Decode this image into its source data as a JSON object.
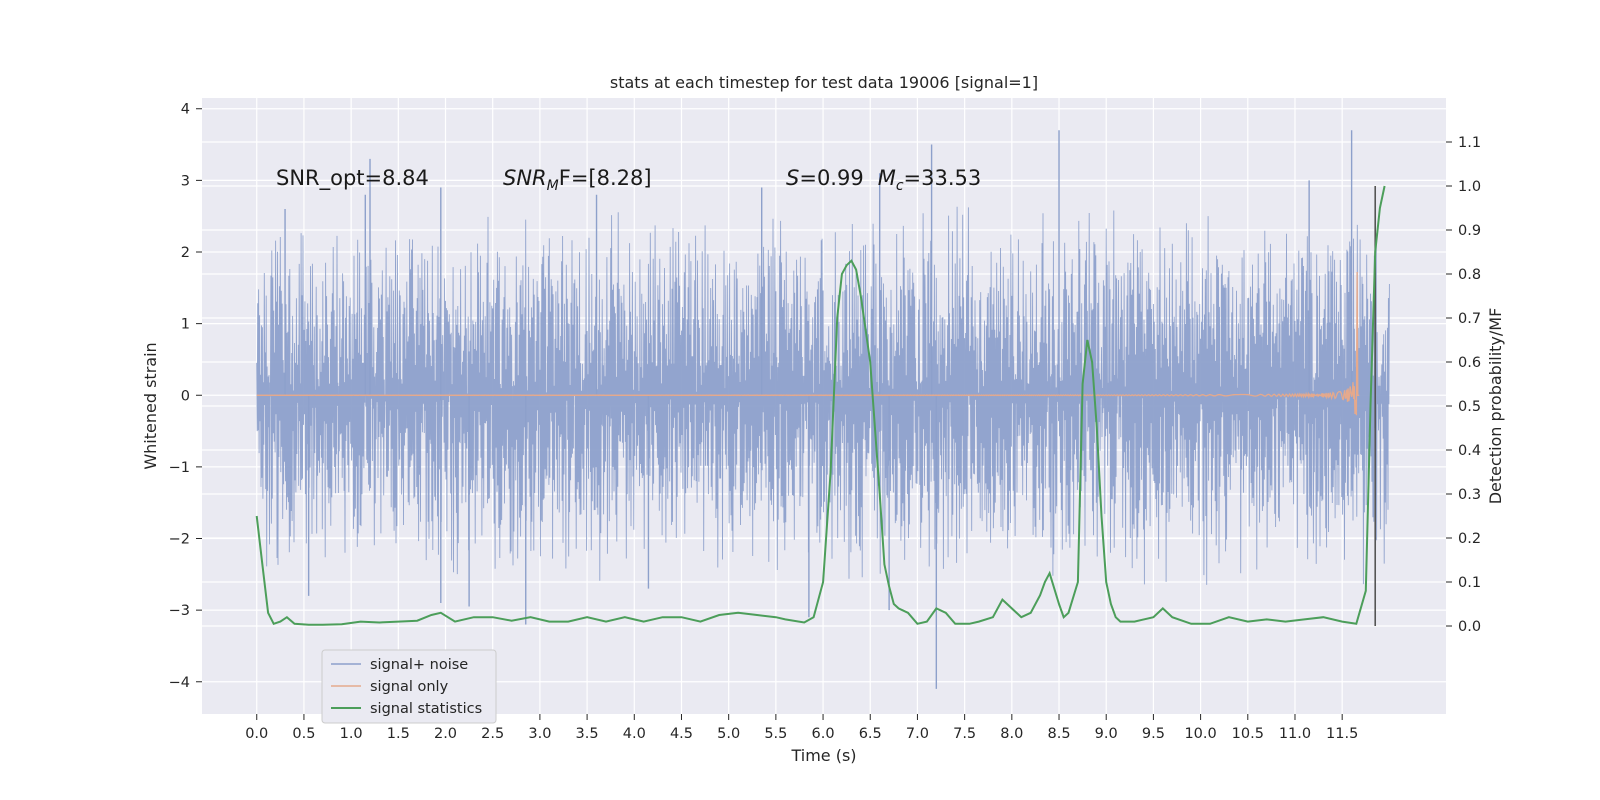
{
  "chart_data": {
    "type": "line",
    "title": "stats at each timestep for test data 19006 [signal=1]",
    "xlabel": "Time (s)",
    "ylabel_left": "Whitened strain",
    "ylabel_right": "Detection probability/MF",
    "xlim": [
      -0.58,
      12.6
    ],
    "ylim_left": [
      -4.45,
      4.15
    ],
    "ylim_right": [
      -0.2,
      1.2
    ],
    "x_ticks": [
      "0.0",
      "0.5",
      "1.0",
      "1.5",
      "2.0",
      "2.5",
      "3.0",
      "3.5",
      "4.0",
      "4.5",
      "5.0",
      "5.5",
      "6.0",
      "6.5",
      "7.0",
      "7.5",
      "8.0",
      "8.5",
      "9.0",
      "9.5",
      "10.0",
      "10.5",
      "11.0",
      "11.5"
    ],
    "y_ticks_left": [
      "−4",
      "−3",
      "−2",
      "−1",
      "0",
      "1",
      "2",
      "3",
      "4"
    ],
    "y_ticks_right": [
      "0.0",
      "0.1",
      "0.2",
      "0.3",
      "0.4",
      "0.5",
      "0.6",
      "0.7",
      "0.8",
      "0.9",
      "1.0",
      "1.1"
    ],
    "grid": true,
    "legend_position": "lower-left",
    "colors": {
      "noise": "#8da0cb",
      "signal": "#e5a98c",
      "stats": "#4c9e5a",
      "marker": "#555555",
      "background": "#eaeaf2",
      "grid": "#ffffff"
    },
    "annotations": {
      "snr_opt": "SNR_opt=8.84",
      "snr_mf_base": "SNR",
      "snr_mf_sub": "M",
      "snr_mf_rest": "F=[8.28]",
      "s_label": "S",
      "s_value": "=0.99",
      "mc_label": "M",
      "mc_sub": "c",
      "mc_value": "=33.53"
    },
    "series": [
      {
        "name": "signal+ noise",
        "axis": "left",
        "x_range": [
          0.0,
          12.0
        ],
        "envelope_typical": 1.5,
        "peaks": [
          {
            "x": 0.3,
            "y": 2.6
          },
          {
            "x": 0.55,
            "y": -2.8
          },
          {
            "x": 1.15,
            "y": 2.8
          },
          {
            "x": 1.2,
            "y": 3.3
          },
          {
            "x": 1.95,
            "y": 2.9
          },
          {
            "x": 1.95,
            "y": -2.9
          },
          {
            "x": 2.25,
            "y": -2.95
          },
          {
            "x": 2.85,
            "y": -3.2
          },
          {
            "x": 3.6,
            "y": 2.8
          },
          {
            "x": 4.15,
            "y": -2.7
          },
          {
            "x": 5.35,
            "y": 2.9
          },
          {
            "x": 5.85,
            "y": -3.1
          },
          {
            "x": 6.6,
            "y": 3.1
          },
          {
            "x": 6.7,
            "y": -3.0
          },
          {
            "x": 7.15,
            "y": 3.5
          },
          {
            "x": 7.2,
            "y": -4.1
          },
          {
            "x": 8.5,
            "y": 3.7
          },
          {
            "x": 11.15,
            "y": 3.0
          },
          {
            "x": 11.6,
            "y": 3.7
          }
        ]
      },
      {
        "name": "signal only",
        "axis": "left",
        "x_start": 0.0,
        "x_end": 11.68,
        "merger_time": 11.66,
        "peak_amplitude": 2.0
      },
      {
        "name": "signal statistics",
        "axis": "right",
        "x": [
          0.0,
          0.07,
          0.12,
          0.18,
          0.25,
          0.32,
          0.4,
          0.55,
          0.7,
          0.9,
          1.1,
          1.3,
          1.5,
          1.7,
          1.85,
          1.95,
          2.1,
          2.3,
          2.5,
          2.7,
          2.9,
          3.1,
          3.3,
          3.5,
          3.7,
          3.9,
          4.1,
          4.3,
          4.5,
          4.7,
          4.9,
          5.1,
          5.3,
          5.5,
          5.6,
          5.8,
          5.9,
          6.0,
          6.08,
          6.15,
          6.2,
          6.25,
          6.3,
          6.35,
          6.4,
          6.5,
          6.6,
          6.65,
          6.7,
          6.75,
          6.8,
          6.9,
          7.0,
          7.1,
          7.2,
          7.3,
          7.4,
          7.55,
          7.65,
          7.8,
          7.9,
          8.0,
          8.1,
          8.2,
          8.3,
          8.35,
          8.4,
          8.5,
          8.55,
          8.6,
          8.7,
          8.75,
          8.8,
          8.85,
          8.9,
          8.95,
          9.0,
          9.05,
          9.1,
          9.15,
          9.2,
          9.3,
          9.5,
          9.6,
          9.7,
          9.9,
          10.1,
          10.3,
          10.5,
          10.7,
          10.9,
          11.1,
          11.3,
          11.5,
          11.65,
          11.75,
          11.8,
          11.85,
          11.9,
          11.95
        ],
        "y": [
          0.25,
          0.12,
          0.03,
          0.005,
          0.01,
          0.02,
          0.005,
          0.003,
          0.003,
          0.004,
          0.01,
          0.008,
          0.01,
          0.012,
          0.025,
          0.03,
          0.01,
          0.02,
          0.02,
          0.012,
          0.02,
          0.01,
          0.01,
          0.02,
          0.01,
          0.02,
          0.01,
          0.02,
          0.02,
          0.01,
          0.025,
          0.03,
          0.025,
          0.02,
          0.015,
          0.008,
          0.02,
          0.1,
          0.35,
          0.7,
          0.8,
          0.82,
          0.83,
          0.81,
          0.75,
          0.6,
          0.3,
          0.14,
          0.09,
          0.05,
          0.04,
          0.03,
          0.005,
          0.01,
          0.04,
          0.03,
          0.005,
          0.005,
          0.01,
          0.02,
          0.06,
          0.04,
          0.02,
          0.03,
          0.07,
          0.1,
          0.12,
          0.05,
          0.02,
          0.03,
          0.1,
          0.55,
          0.65,
          0.6,
          0.45,
          0.25,
          0.1,
          0.05,
          0.02,
          0.01,
          0.01,
          0.01,
          0.02,
          0.04,
          0.02,
          0.005,
          0.005,
          0.02,
          0.01,
          0.015,
          0.01,
          0.015,
          0.02,
          0.01,
          0.005,
          0.08,
          0.5,
          0.85,
          0.95,
          1.0
        ]
      }
    ],
    "marker_line": {
      "x": 11.85,
      "y_range_right": [
        0.0,
        1.0
      ]
    }
  }
}
